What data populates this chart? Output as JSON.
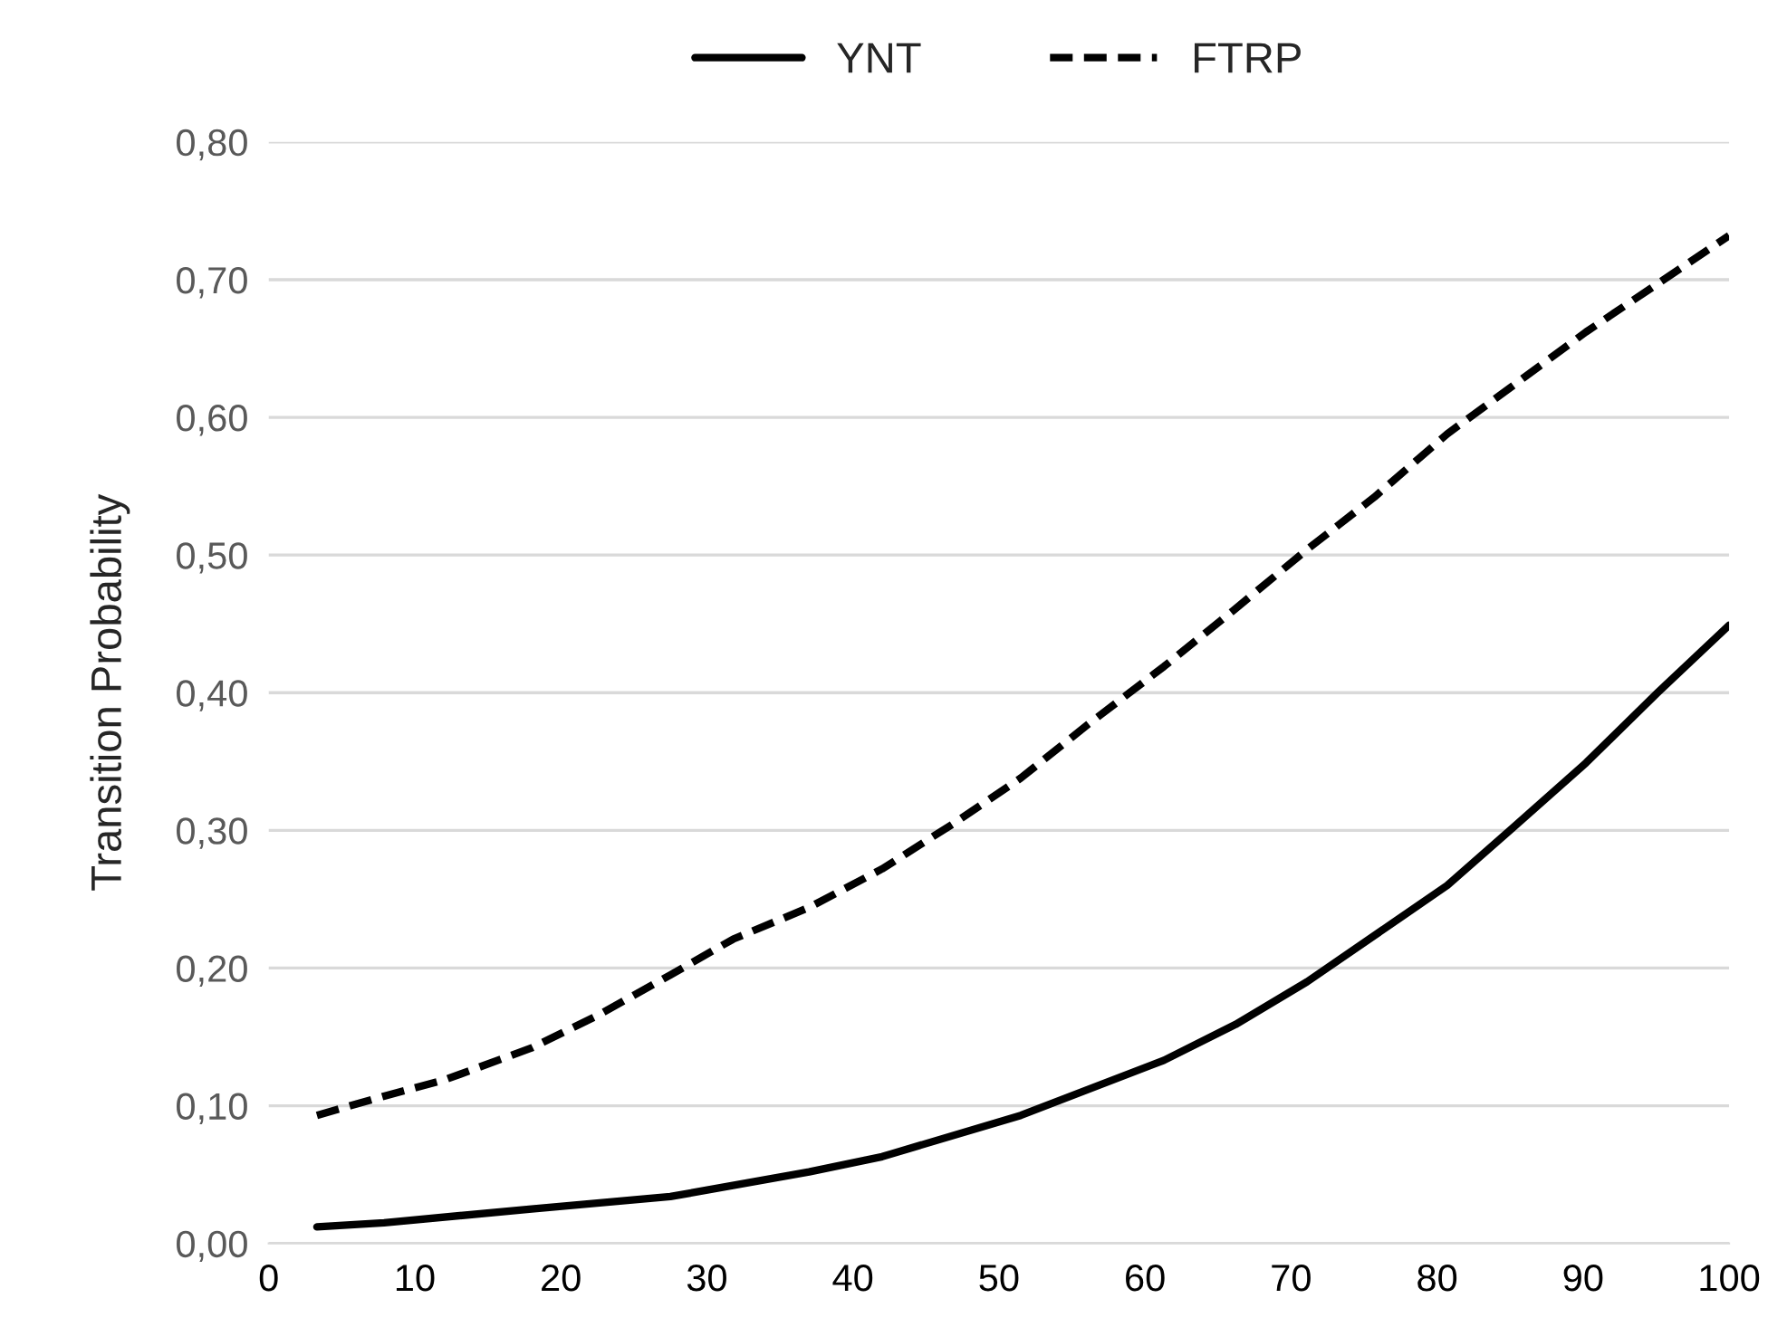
{
  "chart_data": {
    "type": "line",
    "ylabel": "Transition Probability",
    "xlim": [
      0,
      100
    ],
    "xticks": [
      0,
      10,
      20,
      30,
      40,
      50,
      60,
      70,
      80,
      90,
      100
    ],
    "ylim": [
      0,
      0.8
    ],
    "yticks": [
      {
        "value": 0,
        "label": "0,00"
      },
      {
        "value": 0.1,
        "label": "0,10"
      },
      {
        "value": 0.2,
        "label": "0,20"
      },
      {
        "value": 0.3,
        "label": "0,30"
      },
      {
        "value": 0.4,
        "label": "0,40"
      },
      {
        "value": 0.5,
        "label": "0,50"
      },
      {
        "value": 0.6,
        "label": "0,60"
      },
      {
        "value": 0.7,
        "label": "0,70"
      },
      {
        "value": 0.8,
        "label": "0,80"
      }
    ],
    "grid": "y",
    "legend": "top",
    "marker": "none",
    "series": [
      {
        "name": "YNT",
        "color": "#000000",
        "line_style": "solid",
        "x": [
          3.3,
          7.9,
          18,
          27.5,
          37,
          42,
          51.5,
          61.3,
          66.2,
          71.1,
          80.7,
          85.2,
          90.2,
          95.1,
          100
        ],
        "values": [
          0.012,
          0.015,
          0.025,
          0.034,
          0.052,
          0.063,
          0.093,
          0.133,
          0.159,
          0.19,
          0.26,
          0.302,
          0.349,
          0.4,
          0.449
        ]
      },
      {
        "name": "FTRP",
        "color": "#000000",
        "line_style": "dashed",
        "x": [
          3.3,
          7.9,
          12.1,
          18,
          22.6,
          27.5,
          31.8,
          37,
          42,
          46.9,
          51.5,
          56.1,
          61.3,
          66.2,
          71.1,
          75.7,
          80.7,
          85.2,
          90.2,
          95.1,
          100
        ],
        "values": [
          0.093,
          0.107,
          0.119,
          0.142,
          0.166,
          0.195,
          0.221,
          0.244,
          0.272,
          0.305,
          0.338,
          0.377,
          0.419,
          0.461,
          0.504,
          0.542,
          0.588,
          0.623,
          0.662,
          0.697,
          0.732
        ]
      }
    ]
  }
}
